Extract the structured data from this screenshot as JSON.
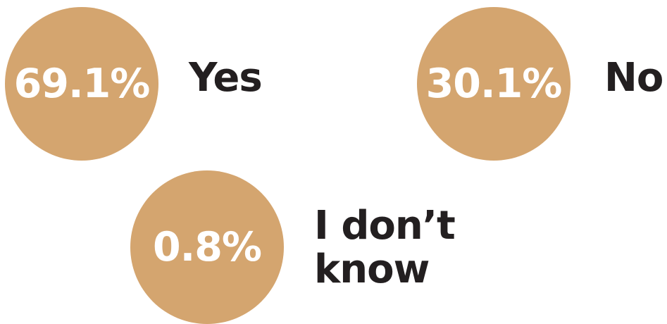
{
  "chart_data": {
    "type": "table",
    "categories": [
      "Yes",
      "No",
      "I don’t know"
    ],
    "values": [
      69.1,
      30.1,
      0.8
    ],
    "unit": "%",
    "value_labels": [
      "69.1%",
      "30.1%",
      "0.8%"
    ],
    "labels": [
      "Yes",
      "No",
      "I don’t\nknow"
    ],
    "circle_color": "#d4a56f",
    "value_text_color": "#ffffff",
    "label_text_color": "#231f20"
  }
}
